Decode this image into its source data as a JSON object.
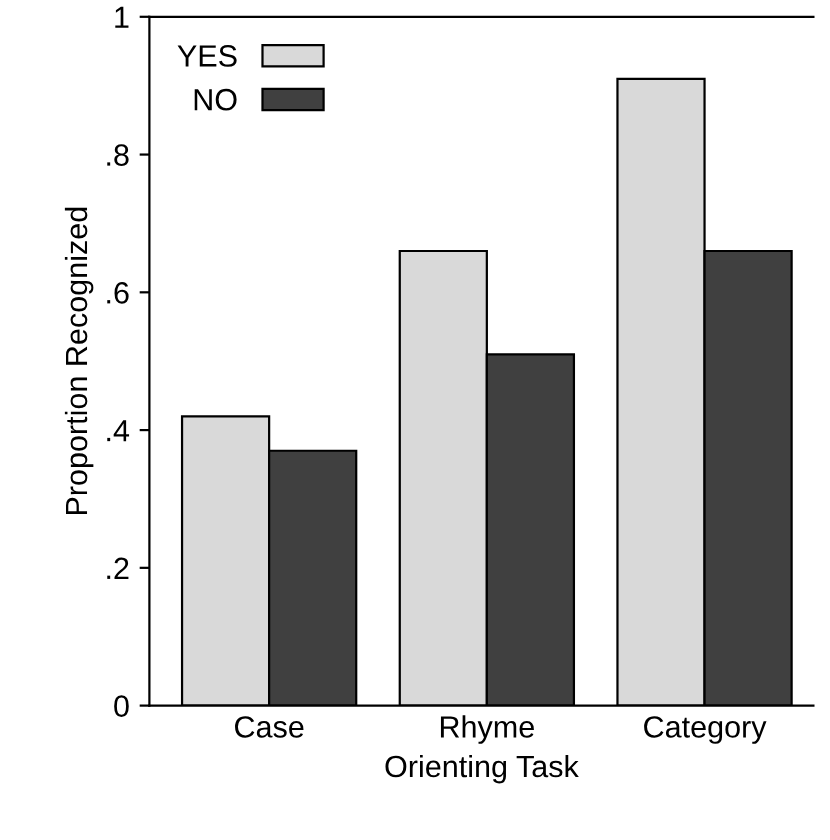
{
  "chart_data": {
    "type": "bar",
    "xlabel": "Orienting Task",
    "ylabel": "Proportion Recognized",
    "categories": [
      "Case",
      "Rhyme",
      "Category"
    ],
    "series": [
      {
        "name": "YES",
        "color": "#d9d9d9",
        "values": [
          0.42,
          0.66,
          0.91
        ]
      },
      {
        "name": "NO",
        "color": "#404040",
        "values": [
          0.37,
          0.51,
          0.66
        ]
      }
    ],
    "ylim": [
      0,
      1
    ],
    "yticks": [
      {
        "value": 0,
        "label": "0"
      },
      {
        "value": 0.2,
        "label": ".2"
      },
      {
        "value": 0.4,
        "label": ".4"
      },
      {
        "value": 0.6,
        "label": ".6"
      },
      {
        "value": 0.8,
        "label": ".8"
      },
      {
        "value": 1,
        "label": "1"
      }
    ],
    "grid": false,
    "legend": "top left"
  }
}
